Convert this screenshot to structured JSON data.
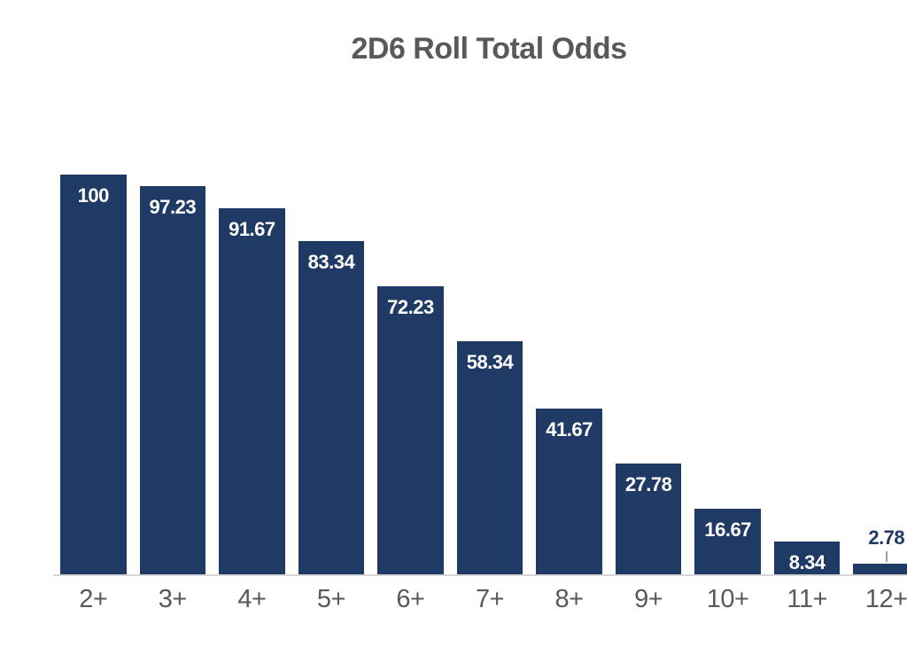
{
  "chart_data": {
    "type": "bar",
    "title": "2D6 Roll Total Odds",
    "categories": [
      "2+",
      "3+",
      "4+",
      "5+",
      "6+",
      "7+",
      "8+",
      "9+",
      "10+",
      "11+",
      "12+"
    ],
    "values": [
      100,
      97.23,
      91.67,
      83.34,
      72.23,
      58.34,
      41.67,
      27.78,
      16.67,
      8.34,
      2.78
    ],
    "value_labels": [
      "100",
      "97.23",
      "91.67",
      "83.34",
      "72.23",
      "58.34",
      "41.67",
      "27.78",
      "16.67",
      "8.34",
      "2.78"
    ],
    "label_placement": [
      "inside",
      "inside",
      "inside",
      "inside",
      "inside",
      "inside",
      "inside",
      "inside",
      "inside",
      "inside",
      "outside"
    ],
    "xlabel": "",
    "ylabel": "",
    "ylim": [
      0,
      100
    ],
    "grid": false,
    "legend": false,
    "colors": {
      "bar": "#1f3a64",
      "value_label_inside": "#ffffff",
      "value_label_outside": "#1f3a64",
      "title": "#595959",
      "axis_label": "#595959",
      "baseline": "#d6d6d6",
      "leader_line": "#9e9e9e",
      "background": "#ffffff"
    }
  }
}
